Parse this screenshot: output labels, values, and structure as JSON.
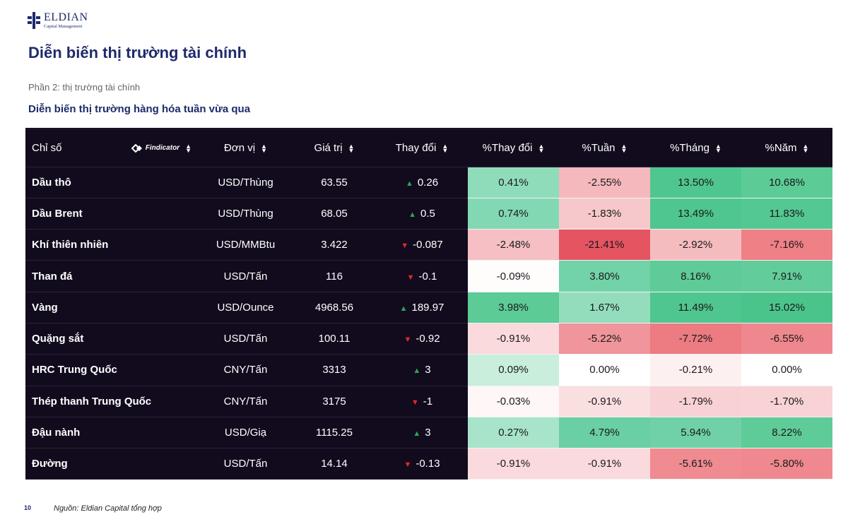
{
  "brand": {
    "name": "ELDIAN",
    "sub": "Capital Management"
  },
  "page_title": "Diễn biến thị trường tài chính",
  "section": "Phần 2: thị trường tài chính",
  "subtitle": "Diễn biến thị trường hàng hóa tuần vừa qua",
  "table": {
    "findicator": "Findicator",
    "headers": [
      "Chỉ số",
      "Đơn vị",
      "Giá trị",
      "Thay đổi",
      "%Thay đổi",
      "%Tuần",
      "%Tháng",
      "%Năm"
    ],
    "rows": [
      {
        "name": "Dầu thô",
        "unit": "USD/Thùng",
        "value": "63.55",
        "dir": "up",
        "change": "0.26",
        "pct": [
          "0.41%",
          "-2.55%",
          "13.50%",
          "10.68%"
        ]
      },
      {
        "name": "Dầu Brent",
        "unit": "USD/Thùng",
        "value": "68.05",
        "dir": "up",
        "change": "0.5",
        "pct": [
          "0.74%",
          "-1.83%",
          "13.49%",
          "11.83%"
        ]
      },
      {
        "name": "Khí thiên nhiên",
        "unit": "USD/MMBtu",
        "value": "3.422",
        "dir": "down",
        "change": "-0.087",
        "pct": [
          "-2.48%",
          "-21.41%",
          "-2.92%",
          "-7.16%"
        ]
      },
      {
        "name": "Than đá",
        "unit": "USD/Tấn",
        "value": "116",
        "dir": "down",
        "change": "-0.1",
        "pct": [
          "-0.09%",
          "3.80%",
          "8.16%",
          "7.91%"
        ]
      },
      {
        "name": "Vàng",
        "unit": "USD/Ounce",
        "value": "4968.56",
        "dir": "up",
        "change": "189.97",
        "pct": [
          "3.98%",
          "1.67%",
          "11.49%",
          "15.02%"
        ]
      },
      {
        "name": "Quặng sắt",
        "unit": "USD/Tấn",
        "value": "100.11",
        "dir": "down",
        "change": "-0.92",
        "pct": [
          "-0.91%",
          "-5.22%",
          "-7.72%",
          "-6.55%"
        ]
      },
      {
        "name": "HRC Trung Quốc",
        "unit": "CNY/Tấn",
        "value": "3313",
        "dir": "up",
        "change": "3",
        "pct": [
          "0.09%",
          "0.00%",
          "-0.21%",
          "0.00%"
        ]
      },
      {
        "name": "Thép thanh Trung Quốc",
        "unit": "CNY/Tấn",
        "value": "3175",
        "dir": "down",
        "change": "-1",
        "pct": [
          "-0.03%",
          "-0.91%",
          "-1.79%",
          "-1.70%"
        ]
      },
      {
        "name": "Đậu nành",
        "unit": "USD/Giạ",
        "value": "1115.25",
        "dir": "up",
        "change": "3",
        "pct": [
          "0.27%",
          "4.79%",
          "5.94%",
          "8.22%"
        ]
      },
      {
        "name": "Đường",
        "unit": "USD/Tấn",
        "value": "14.14",
        "dir": "down",
        "change": "-0.13",
        "pct": [
          "-0.91%",
          "-0.91%",
          "-5.61%",
          "-5.80%"
        ]
      }
    ],
    "cell_colors": [
      [
        "#8fdcbb",
        "#f4b8bd",
        "#4fc68f",
        "#5ccb96"
      ],
      [
        "#83d8b4",
        "#f6c8cc",
        "#4fc68f",
        "#54c892"
      ],
      [
        "#f5bfc3",
        "#e45461",
        "#f5bcc0",
        "#ee8086"
      ],
      [
        "#fffcfc",
        "#72d2a8",
        "#5fcb98",
        "#62cc9a"
      ],
      [
        "#5ccb96",
        "#93ddbd",
        "#4fc68f",
        "#4bc48c"
      ],
      [
        "#fadadd",
        "#f0959b",
        "#ec7b82",
        "#ef888e"
      ],
      [
        "#c9eedc",
        "#ffffff",
        "#fdf0f1",
        "#ffffff"
      ],
      [
        "#fef6f7",
        "#fadfe1",
        "#f8d1d4",
        "#f8d2d5"
      ],
      [
        "#a7e4c9",
        "#6acfa2",
        "#6fd1a5",
        "#5fcb98"
      ],
      [
        "#fadadd",
        "#fadadd",
        "#ef8b91",
        "#ef898f"
      ]
    ]
  },
  "footer": {
    "page_number": "10",
    "source": "Nguồn: Eldian Capital tổng hợp"
  }
}
